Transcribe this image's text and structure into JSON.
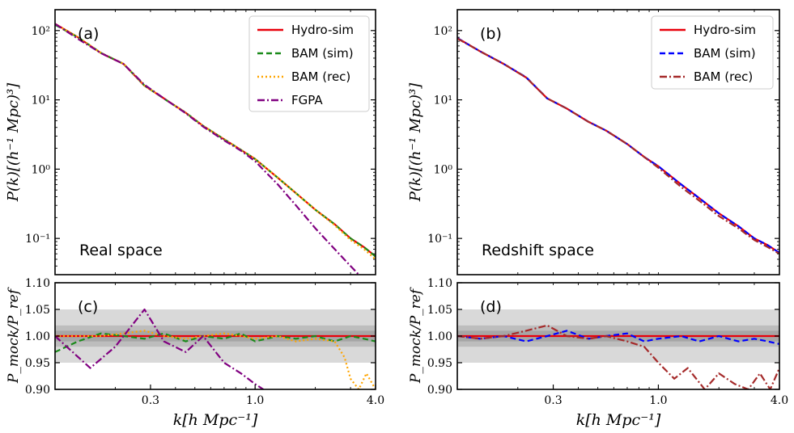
{
  "chart_data": [
    {
      "panel": "(a)",
      "type": "line",
      "scale": {
        "x": "log",
        "y": "log"
      },
      "annotation": "Real space",
      "ylabel": "P(k)[(h⁻¹ Mpc)³]",
      "xlim": [
        0.1,
        4.0
      ],
      "ylim": [
        0.03,
        200
      ],
      "yticks": [
        {
          "value": 100,
          "label": "10²"
        },
        {
          "value": 10,
          "label": "10¹"
        },
        {
          "value": 1,
          "label": "10⁰"
        },
        {
          "value": 0.1,
          "label": "10⁻¹"
        }
      ],
      "legend": {
        "placement": "top-right"
      },
      "series": [
        {
          "name": "Hydro-sim",
          "color": "#e8000b",
          "dash": "solid",
          "k": [
            0.1,
            0.13,
            0.17,
            0.22,
            0.28,
            0.35,
            0.45,
            0.55,
            0.7,
            0.85,
            1.0,
            1.3,
            1.6,
            2.0,
            2.5,
            3.0,
            3.5,
            4.0
          ],
          "values": [
            125,
            80,
            47,
            33,
            16,
            10.5,
            6.5,
            4.2,
            2.7,
            1.9,
            1.4,
            0.75,
            0.45,
            0.26,
            0.16,
            0.1,
            0.075,
            0.055
          ]
        },
        {
          "name": "BAM (sim)",
          "color": "#1a8a1a",
          "dash": "dashed",
          "k": [
            0.1,
            0.13,
            0.17,
            0.22,
            0.28,
            0.35,
            0.45,
            0.55,
            0.7,
            0.85,
            1.0,
            1.3,
            1.6,
            2.0,
            2.5,
            3.0,
            3.5,
            4.0
          ],
          "values": [
            121,
            80,
            47.5,
            33,
            16.1,
            10.4,
            6.5,
            4.2,
            2.7,
            1.9,
            1.4,
            0.75,
            0.45,
            0.26,
            0.16,
            0.1,
            0.075,
            0.055
          ]
        },
        {
          "name": "BAM (rec)",
          "color": "#ffa500",
          "dash": "dotted",
          "k": [
            0.1,
            0.13,
            0.17,
            0.22,
            0.28,
            0.35,
            0.45,
            0.55,
            0.7,
            0.85,
            1.0,
            1.3,
            1.6,
            2.0,
            2.5,
            3.0,
            3.5,
            4.0
          ],
          "values": [
            125,
            80.5,
            47.5,
            33.3,
            16.1,
            10.5,
            6.5,
            4.2,
            2.7,
            1.9,
            1.4,
            0.75,
            0.45,
            0.26,
            0.155,
            0.095,
            0.07,
            0.05
          ]
        },
        {
          "name": "FGPA",
          "color": "#800080",
          "dash": "dashdot",
          "k": [
            0.1,
            0.13,
            0.17,
            0.22,
            0.28,
            0.35,
            0.45,
            0.55,
            0.7,
            0.85,
            1.0,
            1.3,
            1.6,
            2.0,
            2.5,
            3.0,
            3.3
          ],
          "values": [
            125,
            76,
            47,
            33,
            16.5,
            10.5,
            6.4,
            4.1,
            2.6,
            1.85,
            1.3,
            0.6,
            0.3,
            0.14,
            0.07,
            0.04,
            0.03
          ]
        }
      ]
    },
    {
      "panel": "(b)",
      "type": "line",
      "scale": {
        "x": "log",
        "y": "log"
      },
      "annotation": "Redshift space",
      "ylabel": "P(k)[(h⁻¹ Mpc)³]",
      "xlim": [
        0.1,
        4.0
      ],
      "ylim": [
        0.03,
        200
      ],
      "yticks": [
        {
          "value": 100,
          "label": "10²"
        },
        {
          "value": 10,
          "label": "10¹"
        },
        {
          "value": 1,
          "label": "10⁰"
        },
        {
          "value": 0.1,
          "label": "10⁻¹"
        }
      ],
      "legend": {
        "placement": "top-right"
      },
      "series": [
        {
          "name": "Hydro-sim",
          "color": "#e8000b",
          "dash": "solid",
          "k": [
            0.1,
            0.13,
            0.17,
            0.22,
            0.28,
            0.35,
            0.45,
            0.55,
            0.7,
            0.85,
            1.0,
            1.3,
            1.6,
            2.0,
            2.5,
            3.0,
            3.5,
            4.0
          ],
          "values": [
            78,
            50,
            33,
            21,
            10.5,
            7.5,
            4.8,
            3.6,
            2.3,
            1.5,
            1.1,
            0.6,
            0.38,
            0.23,
            0.15,
            0.1,
            0.08,
            0.062
          ]
        },
        {
          "name": "BAM (sim)",
          "color": "#0000ff",
          "dash": "dashed",
          "k": [
            0.1,
            0.13,
            0.17,
            0.22,
            0.28,
            0.35,
            0.45,
            0.55,
            0.7,
            0.85,
            1.0,
            1.3,
            1.6,
            2.0,
            2.5,
            3.0,
            3.5,
            4.0
          ],
          "values": [
            78,
            50,
            33,
            21.2,
            10.5,
            7.5,
            4.8,
            3.6,
            2.3,
            1.5,
            1.1,
            0.6,
            0.38,
            0.23,
            0.15,
            0.1,
            0.08,
            0.062
          ]
        },
        {
          "name": "BAM (rec)",
          "color": "#a52a2a",
          "dash": "dashdot",
          "k": [
            0.1,
            0.13,
            0.17,
            0.22,
            0.28,
            0.35,
            0.45,
            0.55,
            0.7,
            0.85,
            1.0,
            1.3,
            1.6,
            2.0,
            2.5,
            3.0,
            3.5,
            4.0
          ],
          "values": [
            77,
            50,
            33,
            21,
            10.5,
            7.5,
            4.8,
            3.6,
            2.3,
            1.5,
            1.05,
            0.55,
            0.35,
            0.21,
            0.14,
            0.095,
            0.075,
            0.06
          ]
        }
      ]
    },
    {
      "panel": "(c)",
      "type": "line",
      "scale": {
        "x": "log",
        "y": "linear"
      },
      "ylabel": "P_mock/P_ref",
      "xlabel": "k[h Mpc⁻¹]",
      "xlim": [
        0.1,
        4.0
      ],
      "ylim": [
        0.9,
        1.1
      ],
      "yticks": [
        {
          "value": 1.1,
          "label": "1.10"
        },
        {
          "value": 1.05,
          "label": "1.05"
        },
        {
          "value": 1.0,
          "label": "1.00"
        },
        {
          "value": 0.95,
          "label": "0.95"
        },
        {
          "value": 0.9,
          "label": "0.90"
        }
      ],
      "xticks": [
        {
          "value": 0.3,
          "label": "0.3"
        },
        {
          "value": 1.0,
          "label": "1.0"
        },
        {
          "value": 4.0,
          "label": "4.0"
        }
      ],
      "bands": [
        {
          "lo": 0.95,
          "hi": 1.05
        },
        {
          "lo": 0.98,
          "hi": 1.02
        },
        {
          "lo": 0.99,
          "hi": 1.01
        }
      ],
      "series": [
        {
          "name": "Hydro-sim",
          "color": "#e8000b",
          "dash": "solid",
          "k": [
            0.1,
            4.0
          ],
          "values": [
            1.0,
            1.0
          ]
        },
        {
          "name": "BAM (sim)",
          "color": "#1a8a1a",
          "dash": "dashed",
          "k": [
            0.1,
            0.13,
            0.17,
            0.22,
            0.28,
            0.35,
            0.45,
            0.55,
            0.7,
            0.85,
            1.0,
            1.3,
            1.6,
            2.0,
            2.5,
            3.0,
            3.5,
            4.0
          ],
          "values": [
            0.97,
            0.99,
            1.005,
            1.0,
            0.995,
            1.005,
            0.99,
            1.0,
            0.995,
            1.005,
            0.99,
            1.0,
            0.995,
            1.0,
            0.99,
            1.0,
            0.995,
            0.99
          ]
        },
        {
          "name": "BAM (rec)",
          "color": "#ffa500",
          "dash": "dotted",
          "k": [
            0.1,
            0.13,
            0.17,
            0.22,
            0.28,
            0.35,
            0.45,
            0.55,
            0.7,
            0.85,
            1.0,
            1.3,
            1.6,
            2.0,
            2.5,
            2.8,
            3.0,
            3.3,
            3.6,
            4.0
          ],
          "values": [
            1.0,
            1.0,
            1.0,
            1.005,
            1.01,
            1.0,
            0.995,
            1.0,
            1.005,
            1.0,
            0.995,
            1.0,
            0.99,
            0.995,
            0.99,
            0.96,
            0.92,
            0.9,
            0.93,
            0.9
          ]
        },
        {
          "name": "FGPA",
          "color": "#800080",
          "dash": "dashdot",
          "k": [
            0.1,
            0.15,
            0.2,
            0.28,
            0.35,
            0.45,
            0.55,
            0.7,
            0.85,
            1.0,
            1.1
          ],
          "values": [
            1.0,
            0.94,
            0.98,
            1.05,
            0.99,
            0.97,
            1.0,
            0.95,
            0.93,
            0.91,
            0.9
          ]
        }
      ]
    },
    {
      "panel": "(d)",
      "type": "line",
      "scale": {
        "x": "log",
        "y": "linear"
      },
      "ylabel": "P_mock/P_ref",
      "xlabel": "k[h Mpc⁻¹]",
      "xlim": [
        0.1,
        4.0
      ],
      "ylim": [
        0.9,
        1.1
      ],
      "yticks": [
        {
          "value": 1.1,
          "label": "1.10"
        },
        {
          "value": 1.05,
          "label": "1.05"
        },
        {
          "value": 1.0,
          "label": "1.00"
        },
        {
          "value": 0.95,
          "label": "0.95"
        },
        {
          "value": 0.9,
          "label": "0.90"
        }
      ],
      "xticks": [
        {
          "value": 0.3,
          "label": "0.3"
        },
        {
          "value": 1.0,
          "label": "1.0"
        },
        {
          "value": 4.0,
          "label": "4.0"
        }
      ],
      "bands": [
        {
          "lo": 0.95,
          "hi": 1.05
        },
        {
          "lo": 0.98,
          "hi": 1.02
        },
        {
          "lo": 0.99,
          "hi": 1.01
        }
      ],
      "series": [
        {
          "name": "Hydro-sim",
          "color": "#e8000b",
          "dash": "solid",
          "k": [
            0.1,
            4.0
          ],
          "values": [
            1.0,
            1.0
          ]
        },
        {
          "name": "BAM (sim)",
          "color": "#0000ff",
          "dash": "dashed",
          "k": [
            0.1,
            0.13,
            0.17,
            0.22,
            0.28,
            0.35,
            0.45,
            0.55,
            0.7,
            0.85,
            1.0,
            1.3,
            1.6,
            2.0,
            2.5,
            3.0,
            3.5,
            4.0
          ],
          "values": [
            1.0,
            0.995,
            1.0,
            0.99,
            1.0,
            1.01,
            0.995,
            1.0,
            1.005,
            0.99,
            0.995,
            1.0,
            0.99,
            1.0,
            0.99,
            0.995,
            0.99,
            0.985
          ]
        },
        {
          "name": "BAM (rec)",
          "color": "#a52a2a",
          "dash": "dashdot",
          "k": [
            0.1,
            0.13,
            0.17,
            0.22,
            0.28,
            0.35,
            0.45,
            0.55,
            0.7,
            0.85,
            1.0,
            1.2,
            1.4,
            1.7,
            2.0,
            2.4,
            2.8,
            3.2,
            3.6,
            4.0
          ],
          "values": [
            1.0,
            0.995,
            1.0,
            1.01,
            1.02,
            1.0,
            0.995,
            1.0,
            0.99,
            0.98,
            0.95,
            0.92,
            0.94,
            0.9,
            0.93,
            0.91,
            0.9,
            0.93,
            0.9,
            0.94
          ]
        }
      ]
    }
  ]
}
